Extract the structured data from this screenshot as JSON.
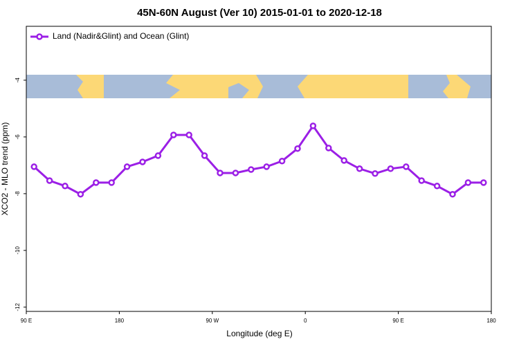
{
  "chart_data": {
    "type": "line",
    "title": "45N-60N August (Ver 10)   2015-01-01 to 2020-12-18",
    "x_label": "Longitude (deg E)",
    "y_label": "XCO2 - MLO trend (ppm)",
    "x": [
      97.5,
      112.5,
      127.5,
      142.5,
      157.5,
      172.5,
      187.5,
      202.5,
      217.5,
      232.5,
      247.5,
      262.5,
      277.5,
      292.5,
      307.5,
      322.5,
      337.5,
      352.5,
      367.5,
      382.5,
      397.5,
      412.5,
      427.5,
      442.5,
      457.5,
      472.5,
      487.5,
      502.5,
      517.5,
      532.5
    ],
    "series": [
      {
        "name": "Land (Nadir&Glint) and Ocean (Glint)",
        "color": "#9b1fe6",
        "values": [
          -7.05,
          -7.54,
          -7.73,
          -8.02,
          -7.61,
          -7.61,
          -7.05,
          -6.88,
          -6.66,
          -5.93,
          -5.93,
          -6.66,
          -7.27,
          -7.27,
          -7.15,
          -7.05,
          -6.85,
          -6.41,
          -5.61,
          -6.39,
          -6.83,
          -7.12,
          -7.29,
          -7.12,
          -7.05,
          -7.54,
          -7.73,
          -8.02,
          -7.61,
          -7.61
        ]
      }
    ],
    "xlim": [
      90,
      540
    ],
    "xticks": [
      {
        "value": 90,
        "label": "90 E"
      },
      {
        "value": 180,
        "label": "180"
      },
      {
        "value": 270,
        "label": "90 W"
      },
      {
        "value": 360,
        "label": "0"
      },
      {
        "value": 450,
        "label": "90 E"
      },
      {
        "value": 540,
        "label": "180"
      }
    ],
    "ylim": [
      -12.15,
      -2.1
    ],
    "yticks": [
      -12,
      -10,
      -8,
      -6,
      -4
    ],
    "legend": "top-left"
  }
}
